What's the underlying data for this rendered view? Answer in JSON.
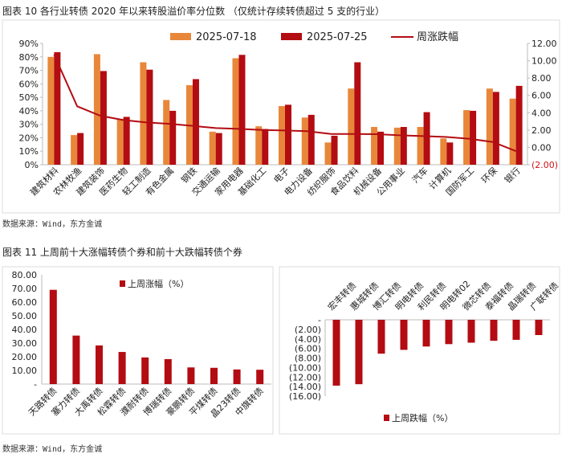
{
  "figure10": {
    "title": "图表 10  各行业转债 2020 年以来转股溢价率分位数  （仅统计存续转债超过 5 支的行业）",
    "source": "数据来源：Wind，东方金诚"
  },
  "figure11": {
    "title": "图表 11  上周前十大涨幅转债个券和前十大跌幅转债个券",
    "source": "数据来源：Wind，东方金诚"
  },
  "colors": {
    "orange": "#E8873A",
    "red": "#B30C12",
    "line": "#B30C12",
    "negative_label": "#D0121B"
  },
  "chart_data": [
    {
      "type": "bar+line",
      "categories": [
        "建筑材料",
        "农林牧渔",
        "建筑装饰",
        "医药生物",
        "轻工制造",
        "有色金属",
        "钢铁",
        "交通运输",
        "家用电器",
        "基础化工",
        "电子",
        "电力设备",
        "纺织服饰",
        "食品饮料",
        "机械设备",
        "公用事业",
        "汽车",
        "计算机",
        "国防军工",
        "环保",
        "银行"
      ],
      "series": [
        {
          "name": "2025-07-18",
          "axis": "left",
          "type": "bar",
          "values": [
            80,
            22,
            82,
            34,
            76,
            48,
            59,
            24.5,
            79,
            28.5,
            43.5,
            35,
            16.5,
            56.5,
            28,
            27.5,
            28,
            19.5,
            40.5,
            56.5,
            49
          ]
        },
        {
          "name": "2025-07-25",
          "axis": "left",
          "type": "bar",
          "values": [
            83.5,
            23.5,
            69.5,
            35.5,
            70.5,
            40,
            63.5,
            23.5,
            81.5,
            26.5,
            44.5,
            37,
            21.5,
            76,
            24.5,
            28,
            39,
            16.5,
            40,
            54,
            58.5
          ]
        },
        {
          "name": "周涨跌幅",
          "axis": "right",
          "type": "line",
          "values": [
            10.7,
            4.74,
            3.65,
            3.16,
            2.88,
            2.72,
            2.48,
            2.23,
            2.14,
            2.01,
            1.95,
            1.86,
            1.55,
            1.55,
            1.52,
            1.39,
            1.3,
            1.2,
            0.99,
            0.62,
            -0.43
          ]
        }
      ],
      "left_axis": {
        "ylim": [
          0,
          90
        ],
        "ticks": [
          "0%",
          "10%",
          "20%",
          "30%",
          "40%",
          "50%",
          "60%",
          "70%",
          "80%",
          "90%"
        ]
      },
      "right_axis": {
        "ylim": [
          -2,
          12
        ],
        "ticks": [
          "(2.00)",
          "0.00",
          "2.00",
          "4.00",
          "6.00",
          "8.00",
          "10.00",
          "12.00"
        ]
      },
      "legend": "top",
      "grid": false
    },
    {
      "type": "bar",
      "categories": [
        "天路转债",
        "塞力转债",
        "大禹转债",
        "松霖转债",
        "濮耐转债",
        "博瑞转债",
        "豪鹏转债",
        "平煤转债",
        "晶23转债",
        "中旗转债"
      ],
      "series": [
        {
          "name": "上周涨幅（%）",
          "values": [
            69,
            35.5,
            28.3,
            23.5,
            19.5,
            18.3,
            12.2,
            11.9,
            10.7,
            10.5
          ]
        }
      ],
      "ylim": [
        0,
        80
      ],
      "ticks": [
        "-",
        "10.00",
        "20.00",
        "30.00",
        "40.00",
        "50.00",
        "60.00",
        "70.00",
        "80.00"
      ],
      "legend": "top",
      "grid": false
    },
    {
      "type": "bar",
      "categories": [
        "宏丰转债",
        "惠城转债",
        "博汇转债",
        "明电转债",
        "利民转债",
        "明电转02",
        "微芯转债",
        "泰福转债",
        "晶瑞转债",
        "广联转债"
      ],
      "series": [
        {
          "name": "上周跌幅（%）",
          "values": [
            -13.8,
            -13.5,
            -7.1,
            -6.3,
            -5.6,
            -5.1,
            -4.8,
            -4.4,
            -4.2,
            -3.2
          ]
        }
      ],
      "ylim": [
        -16,
        0
      ],
      "ticks": [
        "-",
        "(2.00)",
        "(4.00)",
        "(6.00)",
        "(8.00)",
        "(10.00)",
        "(12.00)",
        "(14.00)",
        "(16.00)"
      ],
      "legend": "bottom",
      "grid": false
    }
  ]
}
